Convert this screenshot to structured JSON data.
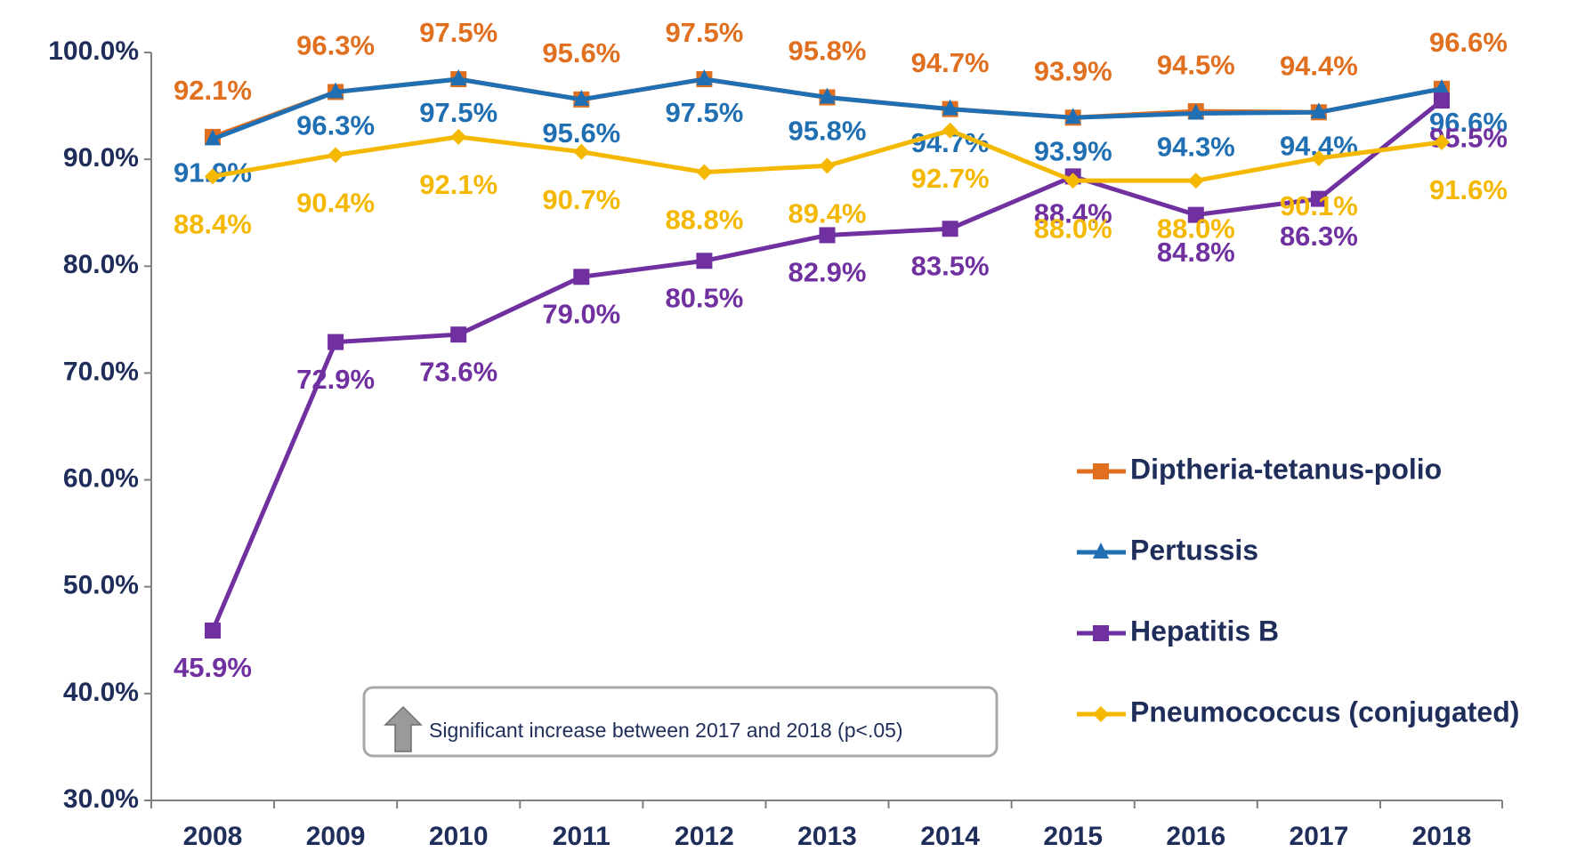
{
  "chart_data": {
    "type": "line",
    "categories": [
      "2008",
      "2009",
      "2010",
      "2011",
      "2012",
      "2013",
      "2014",
      "2015",
      "2016",
      "2017",
      "2018"
    ],
    "series": [
      {
        "name": "Diptheria-tetanus-polio",
        "color": "#e07020",
        "marker": "square",
        "values": [
          92.1,
          96.3,
          97.5,
          95.6,
          97.5,
          95.8,
          94.7,
          93.9,
          94.5,
          94.4,
          96.6
        ],
        "value_labels": [
          "92.1%",
          "96.3%",
          "97.5%",
          "95.6%",
          "97.5%",
          "95.8%",
          "94.7%",
          "93.9%",
          "94.5%",
          "94.4%",
          "96.6%"
        ]
      },
      {
        "name": "Pertussis",
        "color": "#1f6fb2",
        "marker": "triangle",
        "values": [
          91.9,
          96.3,
          97.5,
          95.6,
          97.5,
          95.8,
          94.7,
          93.9,
          94.3,
          94.4,
          96.6
        ],
        "value_labels": [
          "91.9%",
          "96.3%",
          "97.5%",
          "95.6%",
          "97.5%",
          "95.8%",
          "94.7%",
          "93.9%",
          "94.3%",
          "94.4%",
          "96.6%"
        ]
      },
      {
        "name": "Hepatitis B",
        "color": "#7030a0",
        "marker": "square",
        "values": [
          45.9,
          72.9,
          73.6,
          79.0,
          80.5,
          82.9,
          83.5,
          88.4,
          84.8,
          86.3,
          95.5
        ],
        "value_labels": [
          "45.9%",
          "72.9%",
          "73.6%",
          "79.0%",
          "80.5%",
          "82.9%",
          "83.5%",
          "88.4%",
          "84.8%",
          "86.3%",
          "95.5%"
        ]
      },
      {
        "name": "Pneumococcus (conjugated)",
        "color": "#f5b800",
        "marker": "diamond",
        "values": [
          88.4,
          90.4,
          92.1,
          90.7,
          88.8,
          89.4,
          92.7,
          88.0,
          88.0,
          90.1,
          91.6
        ],
        "value_labels": [
          "88.4%",
          "90.4%",
          "92.1%",
          "90.7%",
          "88.8%",
          "89.4%",
          "92.7%",
          "88.0%",
          "88.0%",
          "90.1%",
          "91.6%"
        ]
      }
    ],
    "ylim": [
      30,
      100
    ],
    "yticks": [
      {
        "value": 30,
        "label": "30.0%"
      },
      {
        "value": 40,
        "label": "40.0%"
      },
      {
        "value": 50,
        "label": "50.0%"
      },
      {
        "value": 60,
        "label": "60.0%"
      },
      {
        "value": 70,
        "label": "70.0%"
      },
      {
        "value": 80,
        "label": "80.0%"
      },
      {
        "value": 90,
        "label": "90.0%"
      },
      {
        "value": 100,
        "label": "100.0%"
      }
    ],
    "grid": false,
    "legend": "right",
    "annotation": "Significant increase between 2017 and 2018 (p<.05)"
  }
}
